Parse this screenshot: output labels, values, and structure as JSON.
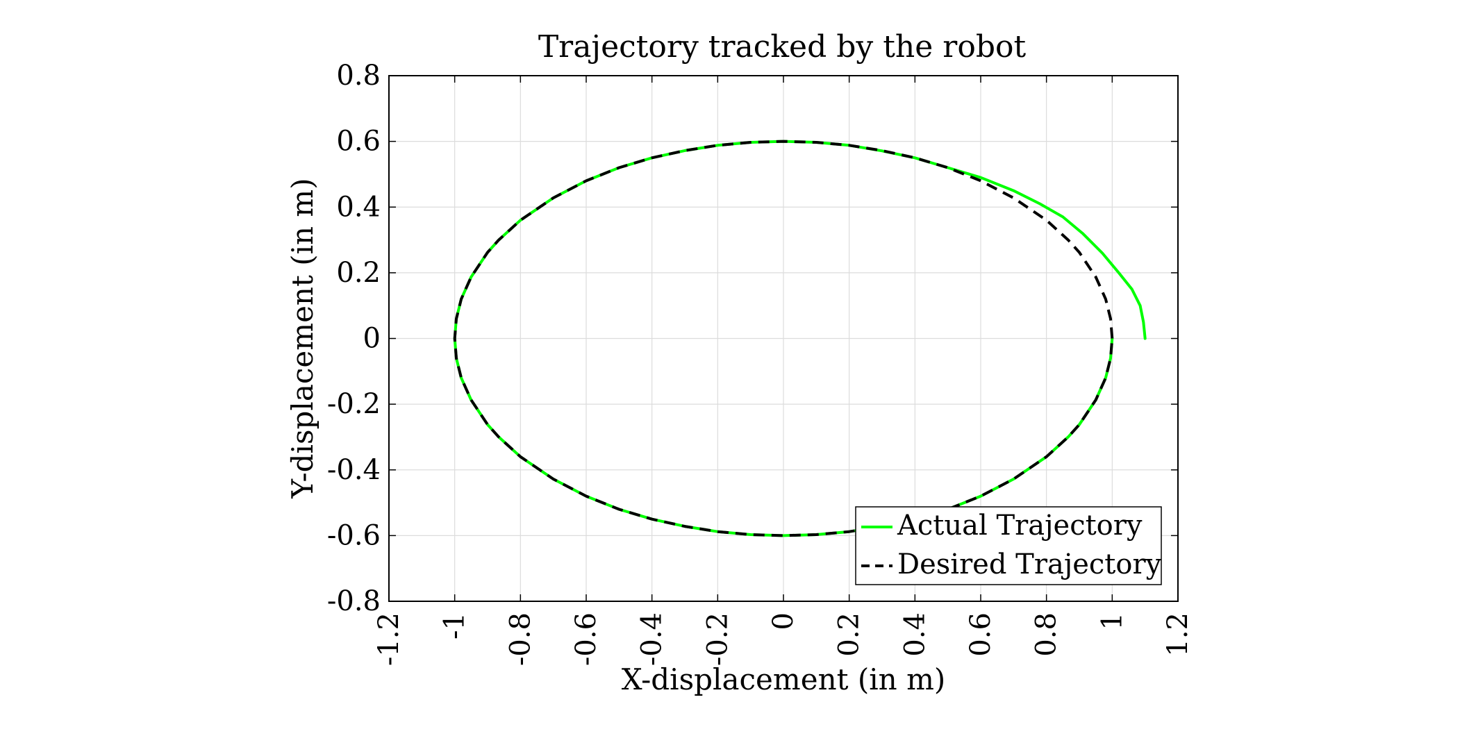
{
  "chart_data": {
    "type": "line",
    "title": "Trajectory tracked by the robot",
    "xlabel": "X-displacement (in m)",
    "ylabel": "Y-displacement (in m)",
    "xlim": [
      -1.2,
      1.2
    ],
    "ylim": [
      -0.8,
      0.8
    ],
    "xticks": [
      "-1.2",
      "-1",
      "-0.8",
      "-0.6",
      "-0.4",
      "-0.2",
      "0",
      "0.2",
      "0.4",
      "0.6",
      "0.8",
      "1",
      "1.2"
    ],
    "yticks": [
      "0.8",
      "0.6",
      "0.4",
      "0.2",
      "0",
      "-0.2",
      "-0.4",
      "-0.6",
      "-0.8"
    ],
    "grid": true,
    "legend_position": "bottom-right",
    "series": [
      {
        "name": "Actual Trajectory",
        "color": "#00ff00",
        "style": "solid",
        "points": [
          [
            1.1,
            0.0
          ],
          [
            1.095,
            0.05
          ],
          [
            1.085,
            0.1
          ],
          [
            1.06,
            0.15
          ],
          [
            1.02,
            0.2
          ],
          [
            0.97,
            0.26
          ],
          [
            0.91,
            0.32
          ],
          [
            0.85,
            0.37
          ],
          [
            0.78,
            0.41
          ],
          [
            0.7,
            0.45
          ],
          [
            0.6,
            0.49
          ],
          [
            0.5,
            0.52
          ],
          [
            0.4,
            0.55
          ],
          [
            0.3,
            0.571
          ],
          [
            0.2,
            0.588
          ],
          [
            0.1,
            0.597
          ],
          [
            0.0,
            0.6
          ],
          [
            -0.1,
            0.597
          ],
          [
            -0.2,
            0.588
          ],
          [
            -0.3,
            0.572
          ],
          [
            -0.4,
            0.55
          ],
          [
            -0.5,
            0.52
          ],
          [
            -0.6,
            0.48
          ],
          [
            -0.7,
            0.428
          ],
          [
            -0.8,
            0.36
          ],
          [
            -0.866,
            0.3
          ],
          [
            -0.9,
            0.262
          ],
          [
            -0.95,
            0.187
          ],
          [
            -0.98,
            0.12
          ],
          [
            -0.995,
            0.06
          ],
          [
            -1.0,
            0.0
          ],
          [
            -0.995,
            -0.06
          ],
          [
            -0.98,
            -0.12
          ],
          [
            -0.95,
            -0.187
          ],
          [
            -0.9,
            -0.262
          ],
          [
            -0.866,
            -0.3
          ],
          [
            -0.8,
            -0.36
          ],
          [
            -0.7,
            -0.428
          ],
          [
            -0.6,
            -0.48
          ],
          [
            -0.5,
            -0.52
          ],
          [
            -0.4,
            -0.55
          ],
          [
            -0.3,
            -0.572
          ],
          [
            -0.2,
            -0.588
          ],
          [
            -0.1,
            -0.597
          ],
          [
            0.0,
            -0.6
          ],
          [
            0.1,
            -0.597
          ],
          [
            0.2,
            -0.588
          ],
          [
            0.3,
            -0.572
          ],
          [
            0.4,
            -0.55
          ],
          [
            0.5,
            -0.52
          ],
          [
            0.6,
            -0.48
          ],
          [
            0.7,
            -0.428
          ],
          [
            0.8,
            -0.36
          ],
          [
            0.866,
            -0.3
          ],
          [
            0.9,
            -0.262
          ],
          [
            0.95,
            -0.187
          ],
          [
            0.98,
            -0.12
          ],
          [
            0.995,
            -0.06
          ],
          [
            1.0,
            0.0
          ]
        ]
      },
      {
        "name": "Desired Trajectory",
        "color": "#000000",
        "style": "dashed",
        "points": [
          [
            1.0,
            0.0
          ],
          [
            0.995,
            0.06
          ],
          [
            0.98,
            0.12
          ],
          [
            0.95,
            0.187
          ],
          [
            0.9,
            0.262
          ],
          [
            0.866,
            0.3
          ],
          [
            0.8,
            0.36
          ],
          [
            0.7,
            0.428
          ],
          [
            0.6,
            0.48
          ],
          [
            0.5,
            0.52
          ],
          [
            0.4,
            0.55
          ],
          [
            0.3,
            0.572
          ],
          [
            0.2,
            0.588
          ],
          [
            0.1,
            0.597
          ],
          [
            0.0,
            0.6
          ],
          [
            -0.1,
            0.597
          ],
          [
            -0.2,
            0.588
          ],
          [
            -0.3,
            0.572
          ],
          [
            -0.4,
            0.55
          ],
          [
            -0.5,
            0.52
          ],
          [
            -0.6,
            0.48
          ],
          [
            -0.7,
            0.428
          ],
          [
            -0.8,
            0.36
          ],
          [
            -0.866,
            0.3
          ],
          [
            -0.9,
            0.262
          ],
          [
            -0.95,
            0.187
          ],
          [
            -0.98,
            0.12
          ],
          [
            -0.995,
            0.06
          ],
          [
            -1.0,
            0.0
          ],
          [
            -0.995,
            -0.06
          ],
          [
            -0.98,
            -0.12
          ],
          [
            -0.95,
            -0.187
          ],
          [
            -0.9,
            -0.262
          ],
          [
            -0.866,
            -0.3
          ],
          [
            -0.8,
            -0.36
          ],
          [
            -0.7,
            -0.428
          ],
          [
            -0.6,
            -0.48
          ],
          [
            -0.5,
            -0.52
          ],
          [
            -0.4,
            -0.55
          ],
          [
            -0.3,
            -0.572
          ],
          [
            -0.2,
            -0.588
          ],
          [
            -0.1,
            -0.597
          ],
          [
            0.0,
            -0.6
          ],
          [
            0.1,
            -0.597
          ],
          [
            0.2,
            -0.588
          ],
          [
            0.3,
            -0.572
          ],
          [
            0.4,
            -0.55
          ],
          [
            0.5,
            -0.52
          ],
          [
            0.6,
            -0.48
          ],
          [
            0.7,
            -0.428
          ],
          [
            0.8,
            -0.36
          ],
          [
            0.866,
            -0.3
          ],
          [
            0.9,
            -0.262
          ],
          [
            0.95,
            -0.187
          ],
          [
            0.98,
            -0.12
          ],
          [
            0.995,
            -0.06
          ],
          [
            1.0,
            0.0
          ]
        ]
      }
    ]
  }
}
